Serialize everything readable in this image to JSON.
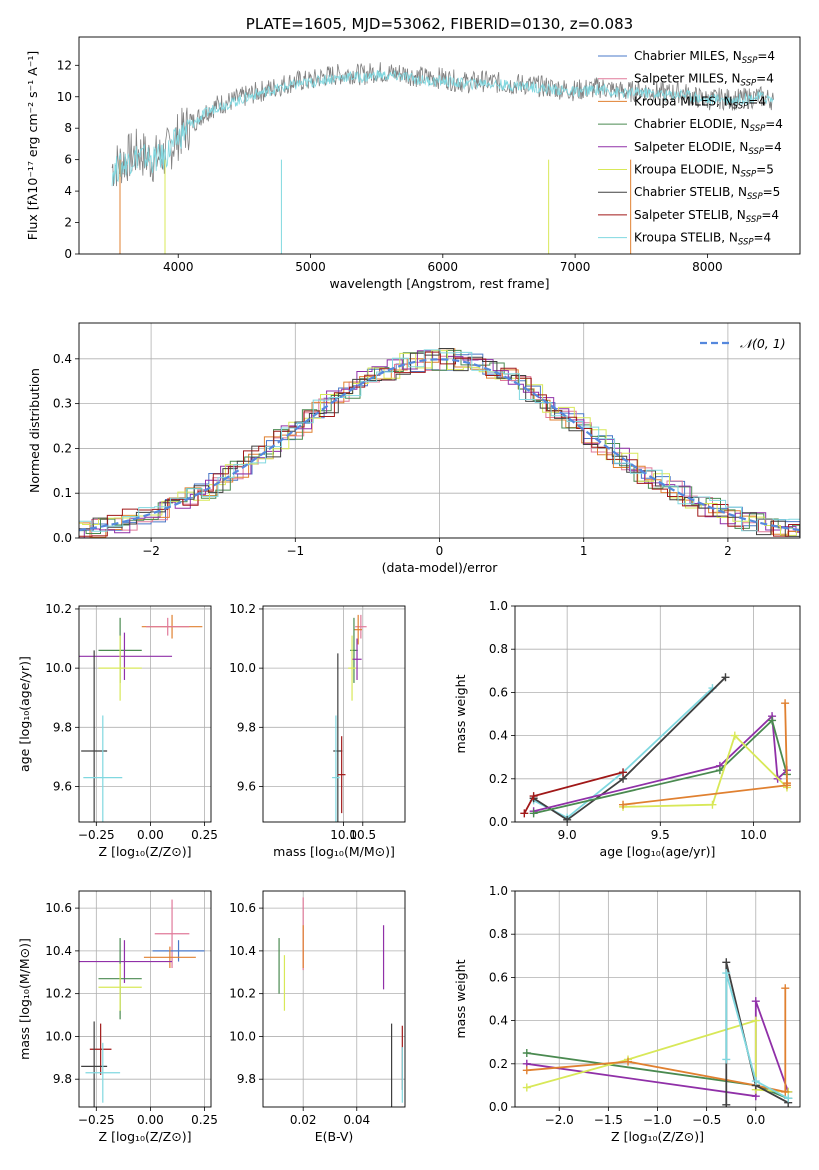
{
  "chart_data": [
    {
      "type": "line",
      "title": "PLATE=1605, MJD=53062, FIBERID=0130, z=0.083",
      "xlabel": "wavelength [Angstrom, rest frame]",
      "ylabel": "Flux [fλ10⁻¹⁷ erg cm⁻² s⁻¹ A⁻¹]",
      "xlim": [
        3250,
        8700
      ],
      "ylim": [
        0,
        13.8
      ],
      "xticks": [
        "4000",
        "5000",
        "6000",
        "7000",
        "8000"
      ],
      "yticks": [
        "0",
        "2",
        "4",
        "6",
        "8",
        "10",
        "12"
      ],
      "legend_position": "right",
      "legend": [
        {
          "name": "Chabrier MILES, N_SSP=4",
          "base": "Chabrier MILES, N",
          "sub": "SSP",
          "tail": "=4",
          "color": "#4a78c8"
        },
        {
          "name": "Salpeter MILES, N_SSP=4",
          "base": "Salpeter MILES, N",
          "sub": "SSP",
          "tail": "=4",
          "color": "#e07a9a"
        },
        {
          "name": "Kroupa MILES, N_SSP=4",
          "base": "Kroupa MILES, N",
          "sub": "SSP",
          "tail": "=4",
          "color": "#e08030"
        },
        {
          "name": "Chabrier ELODIE, N_SSP=4",
          "base": "Chabrier ELODIE, N",
          "sub": "SSP",
          "tail": "=4",
          "color": "#4a8a50"
        },
        {
          "name": "Salpeter ELODIE, N_SSP=4",
          "base": "Salpeter ELODIE, N",
          "sub": "SSP",
          "tail": "=4",
          "color": "#9030a8"
        },
        {
          "name": "Kroupa ELODIE, N_SSP=5",
          "base": "Kroupa ELODIE, N",
          "sub": "SSP",
          "tail": "=5",
          "color": "#d8e858"
        },
        {
          "name": "Chabrier STELIB, N_SSP=5",
          "base": "Chabrier STELIB, N",
          "sub": "SSP",
          "tail": "=5",
          "color": "#404040"
        },
        {
          "name": "Salpeter STELIB, N_SSP=4",
          "base": "Salpeter STELIB, N",
          "sub": "SSP",
          "tail": "=4",
          "color": "#a01818"
        },
        {
          "name": "Kroupa STELIB, N_SSP=4",
          "base": "Kroupa STELIB, N",
          "sub": "SSP",
          "tail": "=4",
          "color": "#80d8e0"
        }
      ],
      "series": [
        {
          "color": "#808080",
          "role": "data",
          "x": [
            3500,
            3600,
            3700,
            3800,
            3900,
            4000,
            4100,
            4200,
            4300,
            4400,
            4500,
            4600,
            4700,
            4800,
            4900,
            5000,
            5100,
            5200,
            5300,
            5400,
            5500,
            5600,
            5700,
            5800,
            5900,
            6000,
            6100,
            6200,
            6300,
            6400,
            6500,
            6600,
            6700,
            6800,
            6900,
            7000,
            7100,
            7200,
            7300,
            7400,
            7500,
            7600,
            7700,
            7800,
            7900,
            8000,
            8100,
            8200,
            8300,
            8400,
            8500
          ],
          "y": [
            5.5,
            6.0,
            6.5,
            6.0,
            6.3,
            7.5,
            8.3,
            9.0,
            9.5,
            9.7,
            10.0,
            10.3,
            10.5,
            10.8,
            11.0,
            11.0,
            11.3,
            11.4,
            11.5,
            11.4,
            11.6,
            11.5,
            11.5,
            11.3,
            11.2,
            11.2,
            11.0,
            10.9,
            11.0,
            10.9,
            10.8,
            10.8,
            10.7,
            10.6,
            10.5,
            10.4,
            10.5,
            10.6,
            10.4,
            10.3,
            10.4,
            10.3,
            10.2,
            10.3,
            10.0,
            9.8,
            9.9,
            9.8,
            9.9,
            10.0,
            9.8
          ]
        },
        {
          "color": "#80d8e0",
          "role": "model",
          "x": [
            3500,
            3600,
            3700,
            3800,
            3900,
            4000,
            4100,
            4200,
            4300,
            4400,
            4500,
            4600,
            4700,
            4800,
            4900,
            5000,
            5100,
            5200,
            5300,
            5400,
            5500,
            5600,
            5700,
            5800,
            5900,
            6000,
            6100,
            6200,
            6300,
            6400,
            6500,
            6600,
            6700,
            6800,
            6900,
            7000,
            7100,
            7200,
            7300,
            7400,
            7500,
            7600,
            7700,
            7800,
            7900,
            8000,
            8100,
            8200,
            8300,
            8400,
            8500
          ],
          "y": [
            5.2,
            5.8,
            6.3,
            6.0,
            6.2,
            7.4,
            8.2,
            8.9,
            9.4,
            9.6,
            9.9,
            10.2,
            10.4,
            10.6,
            10.8,
            10.9,
            11.1,
            11.2,
            11.3,
            11.2,
            11.4,
            11.3,
            11.3,
            11.1,
            11.0,
            11.0,
            10.9,
            10.8,
            10.9,
            10.8,
            10.7,
            10.7,
            10.6,
            10.5,
            10.4,
            10.3,
            10.4,
            10.5,
            10.3,
            10.2,
            10.3,
            10.2,
            10.1,
            10.2,
            10.0,
            9.8,
            9.9,
            9.8,
            9.9,
            10.0,
            9.8
          ]
        }
      ]
    },
    {
      "type": "line",
      "xlabel": "(data-model)/error",
      "ylabel": "Normed distribution",
      "xlim": [
        -2.5,
        2.5
      ],
      "ylim": [
        0,
        0.48
      ],
      "xticks": [
        "−2",
        "−1",
        "0",
        "1",
        "2"
      ],
      "yticks": [
        "0.0",
        "0.1",
        "0.2",
        "0.3",
        "0.4"
      ],
      "legend_position": "top-right",
      "legend": [
        {
          "name": "𝒩(0, 1)",
          "color": "#5588dd"
        }
      ],
      "series": [
        {
          "name": "𝒩(0, 1)",
          "color": "#5588dd",
          "mu": 0,
          "sigma": 1
        }
      ],
      "hist_colors": [
        "#4a78c8",
        "#e07a9a",
        "#e08030",
        "#4a8a50",
        "#9030a8",
        "#d8e858",
        "#404040",
        "#a01818",
        "#80d8e0"
      ]
    },
    {
      "type": "scatter",
      "xlabel": "Z [log₁₀(Z/Z⊙)]",
      "ylabel": "age  [log₁₀(age/yr)]",
      "xlim": [
        -0.33,
        0.28
      ],
      "ylim": [
        9.48,
        10.21
      ],
      "xticks": [
        "−0.25",
        "0.00",
        "0.25"
      ],
      "yticks": [
        "9.6",
        "9.8",
        "10.0",
        "10.2"
      ],
      "points": [
        {
          "x": 0.1,
          "y": 10.14,
          "xerr": 0.14,
          "yerr": 0.04,
          "color": "#e08030"
        },
        {
          "x": 0.08,
          "y": 10.14,
          "xerr": 0.1,
          "yerr": 0.03,
          "color": "#e07a9a"
        },
        {
          "x": -0.14,
          "y": 10.06,
          "xerr": 0.1,
          "yerr": 0.11,
          "color": "#4a8a50"
        },
        {
          "x": -0.12,
          "y": 10.04,
          "xerr": 0.22,
          "yerr": 0.08,
          "color": "#9030a8"
        },
        {
          "x": -0.14,
          "y": 10.0,
          "xerr": 0.1,
          "yerr": 0.11,
          "color": "#d8e858"
        },
        {
          "x": -0.26,
          "y": 9.72,
          "xerr": 0.06,
          "yerr": 0.34,
          "color": "#404040"
        },
        {
          "x": -0.22,
          "y": 9.63,
          "xerr": 0.09,
          "yerr": 0.21,
          "color": "#80d8e0"
        }
      ]
    },
    {
      "type": "scatter",
      "xlabel": "mass [log₁₀(M/M⊙)]",
      "ylabel": "",
      "xlim": [
        7.9,
        11.6
      ],
      "ylim": [
        9.48,
        10.21
      ],
      "xticks": [
        "10.0",
        "10.5"
      ],
      "yticks": [
        "9.6",
        "9.8",
        "10.0",
        "10.2"
      ],
      "points": [
        {
          "x": 10.45,
          "y": 10.14,
          "xerr": 0.15,
          "yerr": 0.04,
          "color": "#e07a9a"
        },
        {
          "x": 10.38,
          "y": 10.13,
          "xerr": 0.1,
          "yerr": 0.05,
          "color": "#e08030"
        },
        {
          "x": 10.27,
          "y": 10.06,
          "xerr": 0.1,
          "yerr": 0.11,
          "color": "#4a8a50"
        },
        {
          "x": 10.35,
          "y": 10.03,
          "xerr": 0.12,
          "yerr": 0.07,
          "color": "#9030a8"
        },
        {
          "x": 10.22,
          "y": 10.0,
          "xerr": 0.1,
          "yerr": 0.11,
          "color": "#d8e858"
        },
        {
          "x": 9.85,
          "y": 9.72,
          "xerr": 0.12,
          "yerr": 0.33,
          "color": "#404040"
        },
        {
          "x": 9.95,
          "y": 9.64,
          "xerr": 0.1,
          "yerr": 0.13,
          "color": "#a01818"
        },
        {
          "x": 9.8,
          "y": 9.63,
          "xerr": 0.1,
          "yerr": 0.21,
          "color": "#80d8e0"
        }
      ]
    },
    {
      "type": "line",
      "xlabel": "age  [log₁₀(age/yr)]",
      "ylabel": "mass weight",
      "xlim": [
        8.72,
        10.25
      ],
      "ylim": [
        0,
        1
      ],
      "xticks": [
        "9.0",
        "9.5",
        "10.0"
      ],
      "yticks": [
        "0.0",
        "0.2",
        "0.4",
        "0.6",
        "0.8",
        "1.0"
      ],
      "series": [
        {
          "color": "#80d8e0",
          "x": [
            8.82,
            9.0,
            9.3,
            9.78
          ],
          "y": [
            0.1,
            0.02,
            0.23,
            0.62
          ]
        },
        {
          "color": "#404040",
          "x": [
            8.82,
            9.0,
            9.3,
            9.85
          ],
          "y": [
            0.11,
            0.01,
            0.2,
            0.67
          ]
        },
        {
          "color": "#a01818",
          "x": [
            8.77,
            8.82,
            9.3
          ],
          "y": [
            0.04,
            0.12,
            0.23
          ]
        },
        {
          "color": "#9030a8",
          "x": [
            8.82,
            9.82,
            10.1,
            10.13,
            10.18
          ],
          "y": [
            0.05,
            0.26,
            0.49,
            0.2,
            0.24
          ]
        },
        {
          "color": "#4a8a50",
          "x": [
            8.82,
            9.82,
            10.1,
            10.18
          ],
          "y": [
            0.04,
            0.24,
            0.47,
            0.22
          ]
        },
        {
          "color": "#d8e858",
          "x": [
            9.3,
            9.78,
            9.9,
            10.18
          ],
          "y": [
            0.07,
            0.08,
            0.4,
            0.16
          ]
        },
        {
          "color": "#e08030",
          "x": [
            9.3,
            10.18,
            10.17,
            10.18
          ],
          "y": [
            0.08,
            0.17,
            0.55,
            0.18
          ]
        }
      ]
    },
    {
      "type": "scatter",
      "xlabel": "Z [log₁₀(Z/Z⊙)]",
      "ylabel": "mass [log₁₀(M/M⊙)]",
      "xlim": [
        -0.33,
        0.28
      ],
      "ylim": [
        9.67,
        10.68
      ],
      "xticks": [
        "−0.25",
        "0.00",
        "0.25"
      ],
      "yticks": [
        "9.8",
        "10.0",
        "10.2",
        "10.4",
        "10.6"
      ],
      "points": [
        {
          "x": 0.1,
          "y": 10.48,
          "xerr": 0.08,
          "yerr": 0.16,
          "color": "#e07a9a"
        },
        {
          "x": 0.13,
          "y": 10.4,
          "xerr": 0.12,
          "yerr": 0.05,
          "color": "#4a78c8"
        },
        {
          "x": 0.09,
          "y": 10.37,
          "xerr": 0.12,
          "yerr": 0.05,
          "color": "#e08030"
        },
        {
          "x": -0.12,
          "y": 10.35,
          "xerr": 0.22,
          "yerr": 0.1,
          "color": "#9030a8"
        },
        {
          "x": -0.14,
          "y": 10.27,
          "xerr": 0.1,
          "yerr": 0.19,
          "color": "#4a8a50"
        },
        {
          "x": -0.14,
          "y": 10.23,
          "xerr": 0.1,
          "yerr": 0.11,
          "color": "#d8e858"
        },
        {
          "x": -0.23,
          "y": 9.94,
          "xerr": 0.05,
          "yerr": 0.12,
          "color": "#a01818"
        },
        {
          "x": -0.26,
          "y": 9.86,
          "xerr": 0.06,
          "yerr": 0.21,
          "color": "#404040"
        },
        {
          "x": -0.22,
          "y": 9.83,
          "xerr": 0.08,
          "yerr": 0.14,
          "color": "#80d8e0"
        }
      ]
    },
    {
      "type": "scatter",
      "xlabel": "E(B-V)",
      "ylabel": "",
      "xlim": [
        0.005,
        0.058
      ],
      "ylim": [
        9.67,
        10.68
      ],
      "xticks": [
        "0.02",
        "0.04"
      ],
      "yticks": [
        "9.8",
        "10.0",
        "10.2",
        "10.4",
        "10.6"
      ],
      "points": [
        {
          "x": 0.02,
          "y": 10.48,
          "yerr": 0.17,
          "color": "#e07a9a"
        },
        {
          "x": 0.02,
          "y": 10.42,
          "yerr": 0.1,
          "color": "#e08030"
        },
        {
          "x": 0.05,
          "y": 10.37,
          "yerr": 0.15,
          "color": "#9030a8"
        },
        {
          "x": 0.011,
          "y": 10.33,
          "yerr": 0.13,
          "color": "#4a8a50"
        },
        {
          "x": 0.013,
          "y": 10.25,
          "yerr": 0.13,
          "color": "#d8e858"
        },
        {
          "x": 0.057,
          "y": 9.9,
          "yerr": 0.15,
          "color": "#a01818"
        },
        {
          "x": 0.053,
          "y": 9.86,
          "yerr": 0.2,
          "color": "#404040"
        },
        {
          "x": 0.057,
          "y": 9.82,
          "yerr": 0.13,
          "color": "#80d8e0"
        }
      ]
    },
    {
      "type": "line",
      "xlabel": "Z [log₁₀(Z/Z⊙)]",
      "ylabel": "mass weight",
      "xlim": [
        -2.45,
        0.45
      ],
      "ylim": [
        0,
        1
      ],
      "xticks": [
        "−2.0",
        "−1.5",
        "−1.0",
        "−0.5",
        "0.0"
      ],
      "yticks": [
        "0.0",
        "0.2",
        "0.4",
        "0.6",
        "0.8",
        "1.0"
      ],
      "series": [
        {
          "color": "#4a8a50",
          "x": [
            -2.33,
            0.0,
            0.33
          ],
          "y": [
            0.25,
            0.1,
            0.04
          ]
        },
        {
          "color": "#9030a8",
          "x": [
            -2.33,
            0.0,
            0.0,
            0.33
          ],
          "y": [
            0.2,
            0.05,
            0.49,
            0.07
          ]
        },
        {
          "color": "#d8e858",
          "x": [
            -2.33,
            -1.3,
            0.0,
            0.0,
            0.33
          ],
          "y": [
            0.09,
            0.22,
            0.4,
            0.08,
            0.07
          ]
        },
        {
          "color": "#e08030",
          "x": [
            -2.33,
            -1.3,
            0.0,
            0.3,
            0.3
          ],
          "y": [
            0.17,
            0.21,
            0.1,
            0.07,
            0.55
          ]
        },
        {
          "color": "#404040",
          "x": [
            -0.3,
            -0.3,
            0.0,
            0.33
          ],
          "y": [
            0.01,
            0.67,
            0.1,
            0.02
          ]
        },
        {
          "color": "#80d8e0",
          "x": [
            -0.3,
            -0.3,
            0.0,
            0.33
          ],
          "y": [
            0.22,
            0.62,
            0.12,
            0.04
          ]
        }
      ]
    }
  ]
}
